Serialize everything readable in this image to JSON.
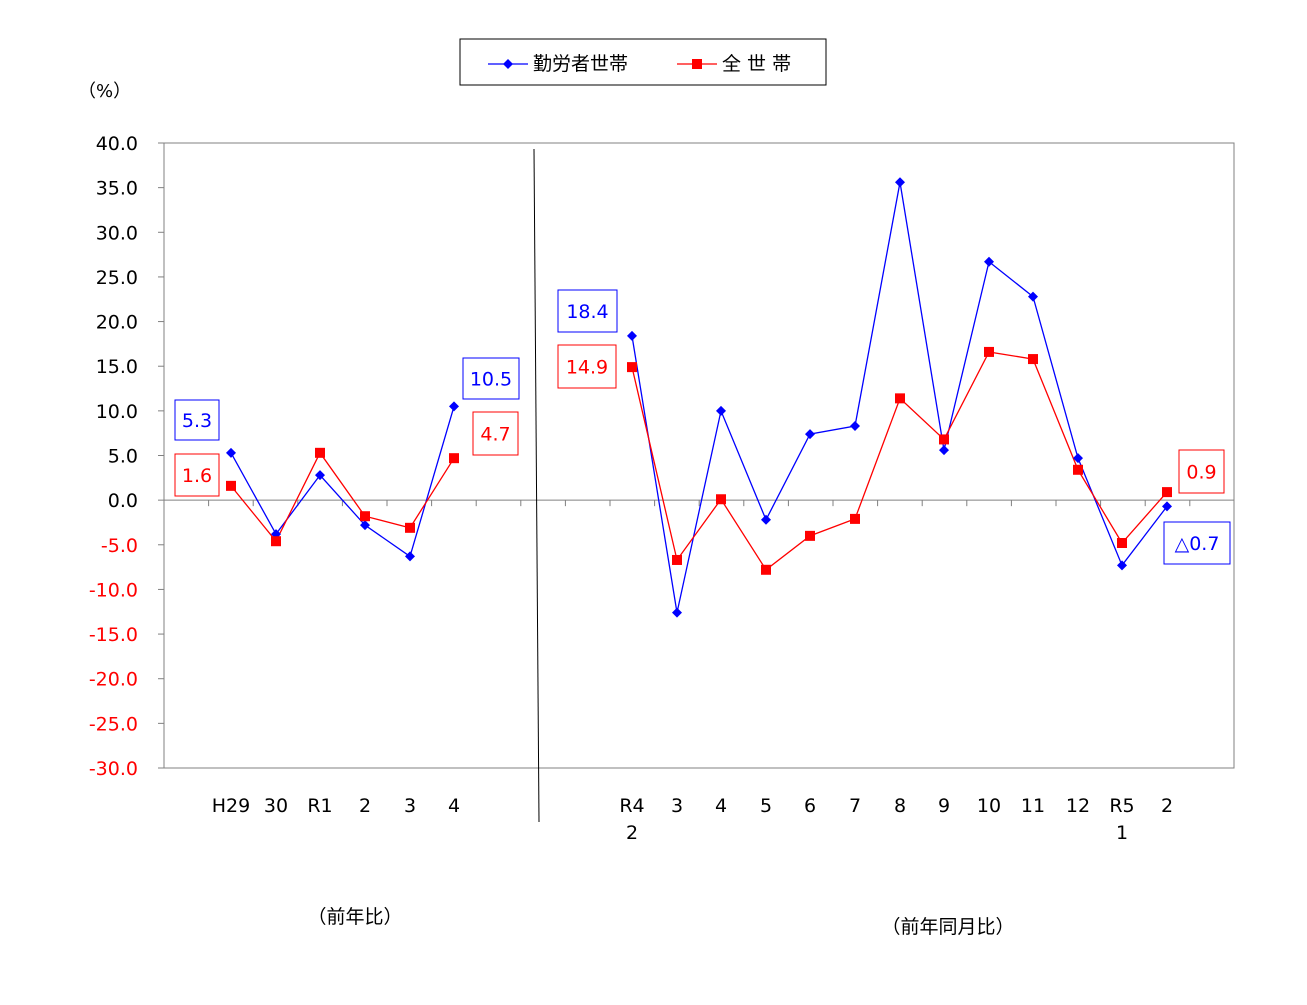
{
  "chart_data": {
    "type": "line",
    "unit_label": "（%）",
    "y_ticks": [
      "40.0",
      "35.0",
      "30.0",
      "25.0",
      "20.0",
      "15.0",
      "10.0",
      "5.0",
      "0.0",
      "-5.0",
      "-10.0",
      "-15.0",
      "-20.0",
      "-25.0",
      "-30.0"
    ],
    "ylim": [
      -30,
      40
    ],
    "positive_tick_color": "#000000",
    "negative_tick_color": "#ff0000",
    "categories": [
      {
        "label": "H29",
        "sub": ""
      },
      {
        "label": "30",
        "sub": ""
      },
      {
        "label": "R1",
        "sub": ""
      },
      {
        "label": "2",
        "sub": ""
      },
      {
        "label": "3",
        "sub": ""
      },
      {
        "label": "4",
        "sub": ""
      },
      {
        "label": "R4",
        "sub": "2"
      },
      {
        "label": "3",
        "sub": ""
      },
      {
        "label": "4",
        "sub": ""
      },
      {
        "label": "5",
        "sub": ""
      },
      {
        "label": "6",
        "sub": ""
      },
      {
        "label": "7",
        "sub": ""
      },
      {
        "label": "8",
        "sub": ""
      },
      {
        "label": "9",
        "sub": ""
      },
      {
        "label": "10",
        "sub": ""
      },
      {
        "label": "11",
        "sub": ""
      },
      {
        "label": "12",
        "sub": ""
      },
      {
        "label": "R5",
        "sub": "1"
      },
      {
        "label": "2",
        "sub": ""
      }
    ],
    "groups": [
      {
        "label": "（前年比）",
        "from": 0,
        "to": 5
      },
      {
        "label": "（前年同月比）",
        "from": 6,
        "to": 18
      }
    ],
    "series": [
      {
        "name": "勤労者世帯",
        "color": "#0000ff",
        "marker": "diamond",
        "annual": [
          5.3,
          -3.8,
          2.8,
          -2.8,
          -6.3,
          10.5
        ],
        "monthly": [
          18.4,
          -12.6,
          10.0,
          -2.2,
          7.4,
          8.3,
          35.6,
          5.6,
          26.7,
          22.8,
          4.7,
          -7.3,
          -0.7
        ]
      },
      {
        "name": "全 世 帯",
        "color": "#ff0000",
        "marker": "square",
        "annual": [
          1.6,
          -4.6,
          5.3,
          -1.8,
          -3.1,
          4.7
        ],
        "monthly": [
          14.9,
          -6.7,
          0.1,
          -7.8,
          -4.0,
          -2.1,
          11.4,
          6.8,
          16.6,
          15.8,
          3.4,
          -4.8,
          0.9
        ]
      }
    ],
    "annotations": [
      {
        "text": "5.3",
        "color": "#0000ff"
      },
      {
        "text": "1.6",
        "color": "#ff0000"
      },
      {
        "text": "10.5",
        "color": "#0000ff"
      },
      {
        "text": "4.7",
        "color": "#ff0000"
      },
      {
        "text": "18.4",
        "color": "#0000ff"
      },
      {
        "text": "14.9",
        "color": "#ff0000"
      },
      {
        "text": "0.9",
        "color": "#ff0000"
      },
      {
        "text": "△0.7",
        "color": "#0000ff"
      }
    ],
    "legend_position": "top-center"
  }
}
